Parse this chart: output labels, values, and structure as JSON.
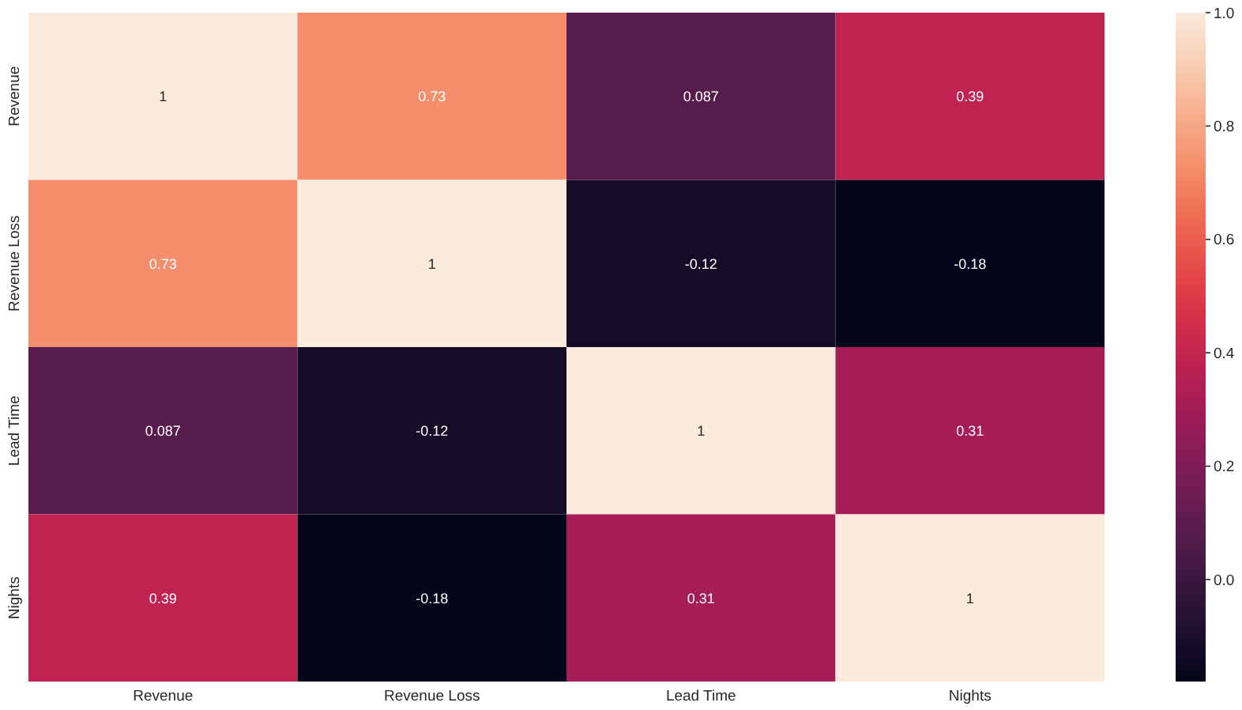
{
  "chart_data": {
    "type": "heatmap",
    "categories": [
      "Revenue",
      "Revenue Loss",
      "Lead Time",
      "Nights"
    ],
    "y_categories": [
      "Revenue",
      "Revenue Loss",
      "Lead Time",
      "Nights"
    ],
    "cells": [
      [
        1,
        0.73,
        0.087,
        0.39
      ],
      [
        0.73,
        1,
        -0.12,
        -0.18
      ],
      [
        0.087,
        -0.12,
        1,
        0.31
      ],
      [
        0.39,
        -0.18,
        0.31,
        1
      ]
    ],
    "data_labels": true,
    "clim": [
      -0.18,
      1
    ],
    "cticks": [
      {
        "value": 0,
        "label": "0.0"
      },
      {
        "value": 0.2,
        "label": "0.2"
      },
      {
        "value": 0.4,
        "label": "0.4"
      },
      {
        "value": 0.6,
        "label": "0.6"
      },
      {
        "value": 0.8,
        "label": "0.8"
      },
      {
        "value": 1,
        "label": "1.0"
      }
    ]
  }
}
